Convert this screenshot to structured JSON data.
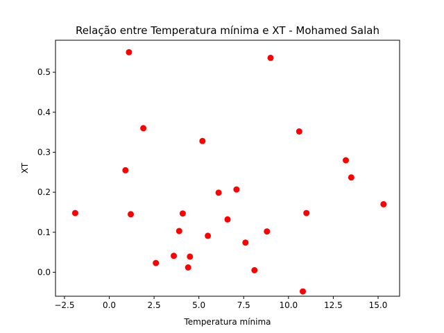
{
  "chart_data": {
    "type": "scatter",
    "title": "Relação entre Temperatura mínima e XT - Mohamed Salah",
    "xlabel": "Temperatura mínima",
    "ylabel": "XT",
    "xlim": [
      -3.0,
      16.2
    ],
    "ylim": [
      -0.06,
      0.58
    ],
    "x_ticks": [
      -2.5,
      0.0,
      2.5,
      5.0,
      7.5,
      10.0,
      12.5,
      15.0
    ],
    "x_tick_labels": [
      "−2.5",
      "0.0",
      "2.5",
      "5.0",
      "7.5",
      "10.0",
      "12.5",
      "15.0"
    ],
    "y_ticks": [
      0.0,
      0.1,
      0.2,
      0.3,
      0.4,
      0.5
    ],
    "y_tick_labels": [
      "0.0",
      "0.1",
      "0.2",
      "0.3",
      "0.4",
      "0.5"
    ],
    "grid": false,
    "marker_color": "#ff0000",
    "points": [
      {
        "x": -1.9,
        "y": 0.148
      },
      {
        "x": 0.9,
        "y": 0.255
      },
      {
        "x": 1.1,
        "y": 0.55
      },
      {
        "x": 1.2,
        "y": 0.145
      },
      {
        "x": 1.9,
        "y": 0.36
      },
      {
        "x": 2.6,
        "y": 0.023
      },
      {
        "x": 3.6,
        "y": 0.041
      },
      {
        "x": 3.9,
        "y": 0.103
      },
      {
        "x": 4.1,
        "y": 0.147
      },
      {
        "x": 4.4,
        "y": 0.012
      },
      {
        "x": 4.5,
        "y": 0.039
      },
      {
        "x": 5.2,
        "y": 0.328
      },
      {
        "x": 5.5,
        "y": 0.091
      },
      {
        "x": 6.1,
        "y": 0.199
      },
      {
        "x": 6.6,
        "y": 0.132
      },
      {
        "x": 7.1,
        "y": 0.207
      },
      {
        "x": 7.6,
        "y": 0.074
      },
      {
        "x": 8.1,
        "y": 0.005
      },
      {
        "x": 8.8,
        "y": 0.102
      },
      {
        "x": 9.0,
        "y": 0.536
      },
      {
        "x": 10.6,
        "y": 0.352
      },
      {
        "x": 10.8,
        "y": -0.048
      },
      {
        "x": 11.0,
        "y": 0.148
      },
      {
        "x": 13.2,
        "y": 0.28
      },
      {
        "x": 13.5,
        "y": 0.237
      },
      {
        "x": 15.3,
        "y": 0.17
      }
    ]
  }
}
